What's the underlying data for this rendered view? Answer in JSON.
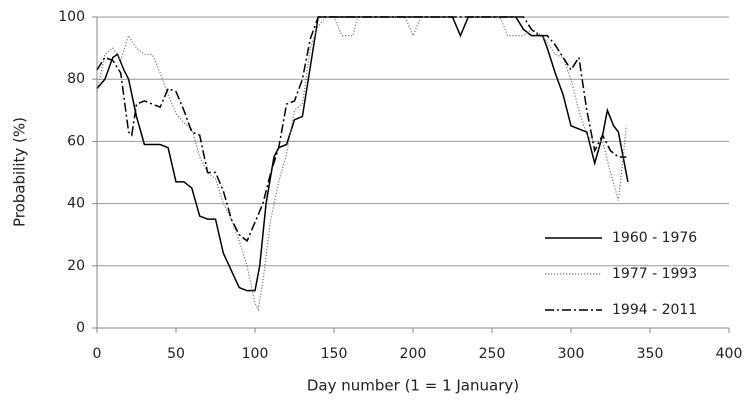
{
  "chart_data": {
    "type": "line",
    "x_label": "Day number (1 = 1 January)",
    "y_label": "Probability (%)",
    "xlim": [
      0,
      400
    ],
    "xticks": [
      0,
      50,
      100,
      150,
      200,
      250,
      300,
      350,
      400
    ],
    "ylim": [
      0,
      100
    ],
    "yticks": [
      0,
      20,
      40,
      60,
      80,
      100
    ],
    "grid": true,
    "legend": "lower right",
    "series": [
      {
        "name": "1960 - 1976",
        "color": "#000000",
        "style": "solid",
        "x": [
          0,
          5,
          10,
          13,
          17,
          20,
          25,
          30,
          40,
          45,
          50,
          55,
          60,
          65,
          70,
          75,
          80,
          90,
          95,
          100,
          103,
          107,
          112,
          115,
          120,
          125,
          130,
          135,
          140,
          145,
          225,
          230,
          235,
          265,
          270,
          275,
          282,
          285,
          290,
          295,
          300,
          305,
          310,
          315,
          320,
          323,
          327,
          330,
          333,
          336
        ],
        "values": [
          77,
          80,
          87,
          88,
          83,
          80,
          68,
          59,
          59,
          58,
          47,
          47,
          45,
          36,
          35,
          35,
          24,
          13,
          12,
          12,
          20,
          40,
          55,
          58,
          59,
          67,
          68,
          84,
          100,
          100,
          100,
          94,
          100,
          100,
          96,
          94,
          94,
          90,
          82,
          75,
          65,
          64,
          63,
          53,
          62,
          70,
          65,
          63,
          55,
          47
        ]
      },
      {
        "name": "1977 - 1993",
        "color": "#777777",
        "style": "dotted",
        "x": [
          0,
          5,
          10,
          15,
          20,
          25,
          30,
          35,
          40,
          45,
          50,
          55,
          60,
          65,
          70,
          75,
          80,
          85,
          90,
          95,
          100,
          102,
          105,
          110,
          115,
          120,
          125,
          130,
          135,
          140,
          145,
          150,
          155,
          162,
          165,
          195,
          200,
          205,
          255,
          260,
          270,
          275,
          282,
          290,
          295,
          300,
          305,
          310,
          315,
          320,
          325,
          330,
          333,
          335
        ],
        "values": [
          76,
          88,
          90,
          86,
          94,
          90,
          88,
          88,
          82,
          75,
          69,
          66,
          64,
          55,
          50,
          48,
          40,
          35,
          28,
          20,
          8,
          6,
          15,
          35,
          47,
          56,
          70,
          72,
          90,
          97,
          100,
          100,
          94,
          94,
          100,
          100,
          94,
          100,
          100,
          94,
          94,
          96,
          94,
          88,
          87,
          80,
          70,
          62,
          60,
          60,
          50,
          41,
          55,
          65
        ]
      },
      {
        "name": "1994 - 2011",
        "color": "#000000",
        "style": "dashdot",
        "x": [
          0,
          5,
          10,
          15,
          20,
          22,
          25,
          30,
          35,
          40,
          45,
          50,
          55,
          60,
          65,
          70,
          75,
          80,
          85,
          90,
          95,
          100,
          105,
          110,
          115,
          120,
          125,
          130,
          135,
          140,
          145,
          270,
          275,
          280,
          285,
          290,
          295,
          300,
          305,
          310,
          315,
          320,
          325,
          330,
          335
        ],
        "values": [
          83,
          87,
          86,
          82,
          63,
          62,
          72,
          73,
          72,
          71,
          77,
          76,
          70,
          63,
          62,
          50,
          50,
          44,
          35,
          30,
          28,
          34,
          40,
          50,
          58,
          72,
          73,
          80,
          93,
          100,
          100,
          100,
          96,
          94,
          94,
          91,
          87,
          83,
          87,
          70,
          57,
          62,
          57,
          55,
          55
        ]
      }
    ]
  }
}
